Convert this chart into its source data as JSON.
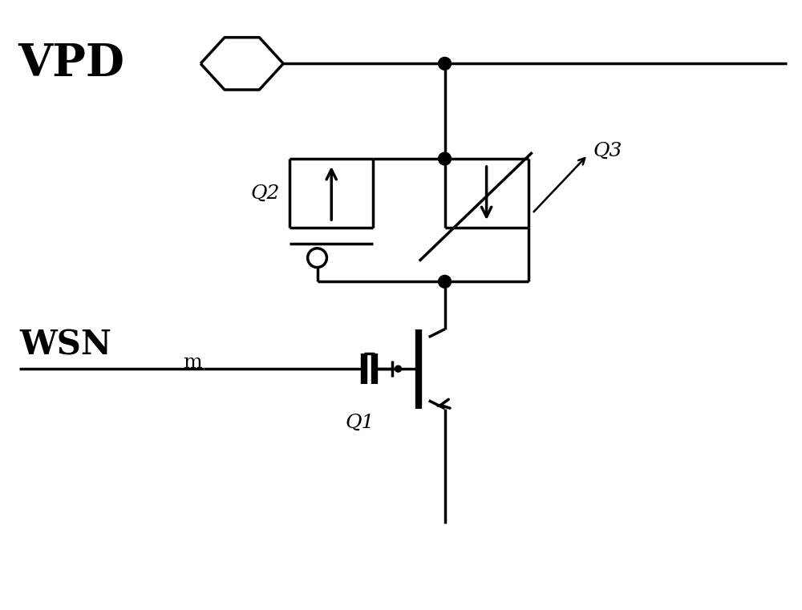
{
  "bg_color": "#ffffff",
  "line_color": "#000000",
  "lw": 2.5,
  "lw_thick": 6.0,
  "fig_width": 10.0,
  "fig_height": 7.61,
  "vpd_label": "VPD",
  "q1_label": "Q1",
  "q2_label": "Q2",
  "q3_label": "Q3",
  "wsn_label": "WSN",
  "wsn_sub": "m",
  "dot_r": 0.08
}
